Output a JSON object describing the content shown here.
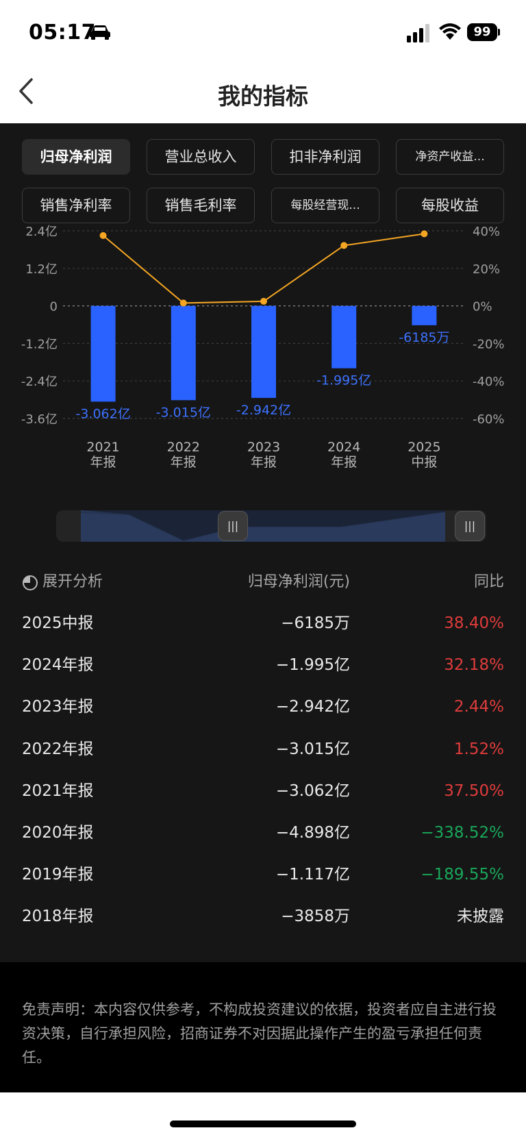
{
  "status": {
    "time": "05:17",
    "battery": "99"
  },
  "header": {
    "title": "我的指标"
  },
  "tabs": [
    {
      "label": "归母净利润",
      "active": true
    },
    {
      "label": "营业总收入",
      "active": false
    },
    {
      "label": "扣非净利润",
      "active": false
    },
    {
      "label": "净资产收益...",
      "active": false
    },
    {
      "label": "销售净利率",
      "active": false
    },
    {
      "label": "销售毛利率",
      "active": false
    },
    {
      "label": "每股经营现...",
      "active": false
    },
    {
      "label": "每股收益",
      "active": false
    }
  ],
  "colors": {
    "bar": "#2962ff",
    "line": "#f5a623",
    "up": "#e03c3c",
    "down": "#19a85a",
    "bg": "#161616"
  },
  "chart_data": {
    "type": "bar",
    "categories": [
      [
        "2021",
        "年报"
      ],
      [
        "2022",
        "年报"
      ],
      [
        "2023",
        "年报"
      ],
      [
        "2024",
        "年报"
      ],
      [
        "2025",
        "中报"
      ]
    ],
    "series": [
      {
        "type": "bar",
        "axis": "left",
        "values": [
          -3.062,
          -3.015,
          -2.942,
          -1.995,
          -0.6185
        ],
        "labels": [
          "-3.062亿",
          "-3.015亿",
          "-2.942亿",
          "-1.995亿",
          "-6185万"
        ]
      },
      {
        "type": "line",
        "axis": "right",
        "values": [
          37.5,
          1.52,
          2.44,
          32.18,
          38.4
        ]
      }
    ],
    "left_axis": {
      "ticks": [
        2.4,
        1.2,
        0,
        -1.2,
        -2.4,
        -3.6
      ],
      "labels": [
        "2.4亿",
        "1.2亿",
        "0",
        "-1.2亿",
        "-2.4亿",
        "-3.6亿"
      ],
      "ylim": [
        -3.6,
        2.4
      ]
    },
    "right_axis": {
      "ticks": [
        40,
        20,
        0,
        -20,
        -40,
        -60
      ],
      "labels": [
        "40%",
        "20%",
        "0%",
        "-20%",
        "-40%",
        "-60%"
      ],
      "ylim": [
        -60,
        40
      ]
    },
    "grid": true,
    "zoom_range": [
      0.4,
      1.0
    ]
  },
  "list": {
    "header": {
      "expand": "展开分析",
      "col2": "归母净利润(元)",
      "col3": "同比"
    },
    "rows": [
      {
        "period": "2025中报",
        "value": "−6185万",
        "yoy": "38.40%",
        "dir": "up"
      },
      {
        "period": "2024年报",
        "value": "−1.995亿",
        "yoy": "32.18%",
        "dir": "up"
      },
      {
        "period": "2023年报",
        "value": "−2.942亿",
        "yoy": "2.44%",
        "dir": "up"
      },
      {
        "period": "2022年报",
        "value": "−3.015亿",
        "yoy": "1.52%",
        "dir": "up"
      },
      {
        "period": "2021年报",
        "value": "−3.062亿",
        "yoy": "37.50%",
        "dir": "up"
      },
      {
        "period": "2020年报",
        "value": "−4.898亿",
        "yoy": "−338.52%",
        "dir": "down"
      },
      {
        "period": "2019年报",
        "value": "−1.117亿",
        "yoy": "−189.55%",
        "dir": "down"
      },
      {
        "period": "2018年报",
        "value": "−3858万",
        "yoy": "未披露",
        "dir": "none"
      }
    ]
  },
  "disclaimer": "免责声明：本内容仅供参考，不构成投资建议的依据，投资者应自主进行投资决策，自行承担风险，招商证券不对因据此操作产生的盈亏承担任何责任。"
}
